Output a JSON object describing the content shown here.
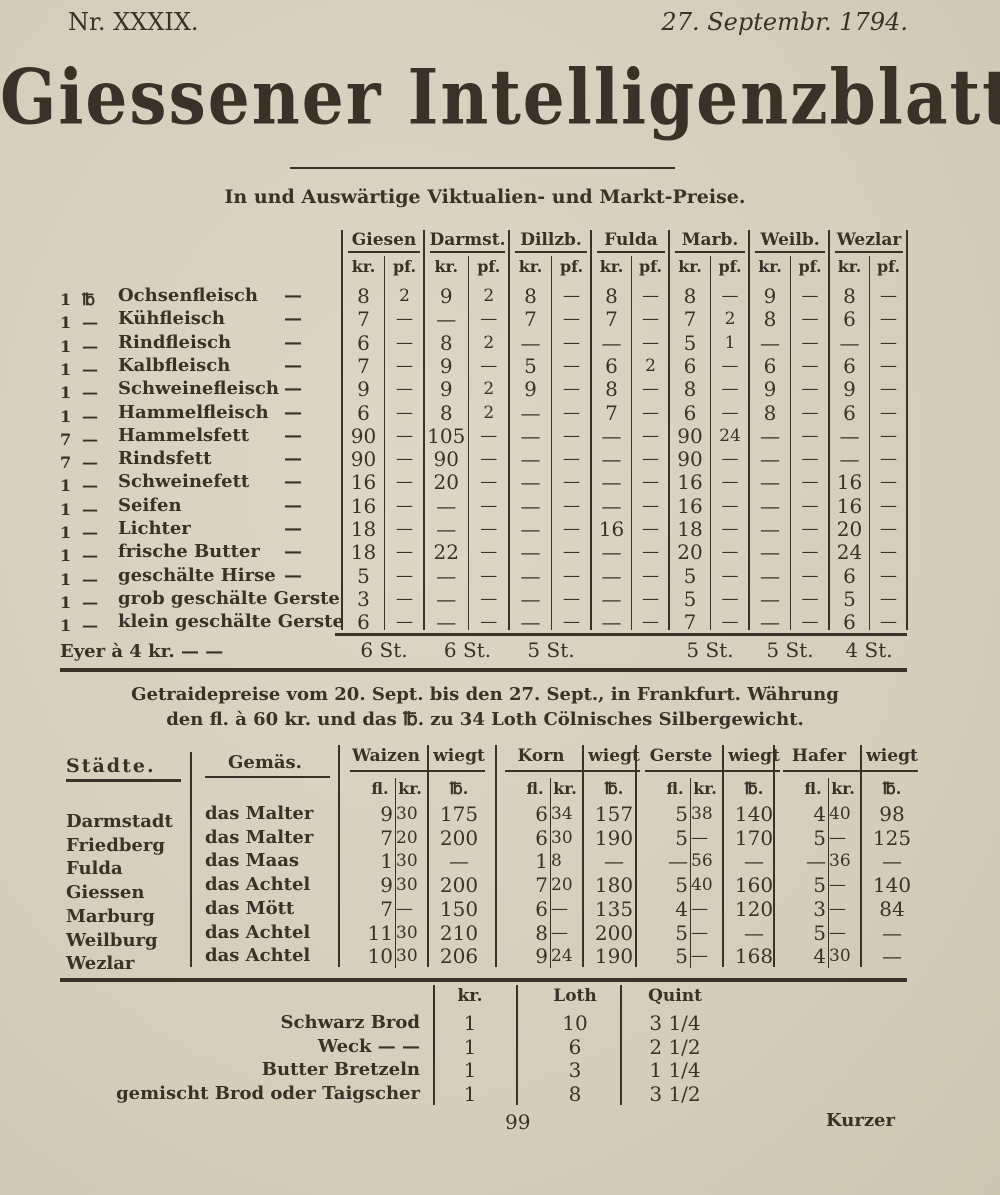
{
  "header": {
    "number": "Nr. XXXIX.",
    "date": "27. Septembr. 1794.",
    "title": "Giessener Intelligenzblatt."
  },
  "market": {
    "subtitle": "In und Auswärtige Viktualien- und Markt-Preise.",
    "cities": [
      "Giesen",
      "Darmst.",
      "Dillzb.",
      "Fulda",
      "Marb.",
      "Weilb.",
      "Wezlar"
    ],
    "units": [
      "kr.",
      "pf."
    ],
    "rows": [
      {
        "qty": "1",
        "unit": "℔",
        "item": "Ochsenfleisch",
        "dash": "—",
        "values": [
          [
            "8",
            "2"
          ],
          [
            "9",
            "2"
          ],
          [
            "8",
            "—"
          ],
          [
            "8",
            "—"
          ],
          [
            "8",
            "—"
          ],
          [
            "9",
            "—"
          ],
          [
            "8",
            "—"
          ]
        ]
      },
      {
        "qty": "1",
        "unit": "—",
        "item": "Kühfleisch",
        "dash": "—",
        "values": [
          [
            "7",
            "—"
          ],
          [
            "—",
            "—"
          ],
          [
            "7",
            "—"
          ],
          [
            "7",
            "—"
          ],
          [
            "7",
            "2"
          ],
          [
            "8",
            "—"
          ],
          [
            "6",
            "—"
          ]
        ]
      },
      {
        "qty": "1",
        "unit": "—",
        "item": "Rindfleisch",
        "dash": "—",
        "values": [
          [
            "6",
            "—"
          ],
          [
            "8",
            "2"
          ],
          [
            "—",
            "—"
          ],
          [
            "—",
            "—"
          ],
          [
            "5",
            "1"
          ],
          [
            "—",
            "—"
          ],
          [
            "—",
            "—"
          ]
        ]
      },
      {
        "qty": "1",
        "unit": "—",
        "item": "Kalbfleisch",
        "dash": "—",
        "values": [
          [
            "7",
            "—"
          ],
          [
            "9",
            "—"
          ],
          [
            "5",
            "—"
          ],
          [
            "6",
            "2"
          ],
          [
            "6",
            "—"
          ],
          [
            "6",
            "—"
          ],
          [
            "6",
            "—"
          ]
        ]
      },
      {
        "qty": "1",
        "unit": "—",
        "item": "Schweinefleisch",
        "dash": "—",
        "values": [
          [
            "9",
            "—"
          ],
          [
            "9",
            "2"
          ],
          [
            "9",
            "—"
          ],
          [
            "8",
            "—"
          ],
          [
            "8",
            "—"
          ],
          [
            "9",
            "—"
          ],
          [
            "9",
            "—"
          ]
        ]
      },
      {
        "qty": "1",
        "unit": "—",
        "item": "Hammelfleisch",
        "dash": "—",
        "values": [
          [
            "6",
            "—"
          ],
          [
            "8",
            "2"
          ],
          [
            "—",
            "—"
          ],
          [
            "7",
            "—"
          ],
          [
            "6",
            "—"
          ],
          [
            "8",
            "—"
          ],
          [
            "6",
            "—"
          ]
        ]
      },
      {
        "qty": "7",
        "unit": "—",
        "item": "Hammelsfett",
        "dash": "—",
        "values": [
          [
            "90",
            "—"
          ],
          [
            "105",
            "—"
          ],
          [
            "—",
            "—"
          ],
          [
            "—",
            "—"
          ],
          [
            "90",
            "24"
          ],
          [
            "—",
            "—"
          ],
          [
            "—",
            "—"
          ]
        ]
      },
      {
        "qty": "7",
        "unit": "—",
        "item": "Rindsfett",
        "dash": "—",
        "values": [
          [
            "90",
            "—"
          ],
          [
            "90",
            "—"
          ],
          [
            "—",
            "—"
          ],
          [
            "—",
            "—"
          ],
          [
            "90",
            "—"
          ],
          [
            "—",
            "—"
          ],
          [
            "—",
            "—"
          ]
        ]
      },
      {
        "qty": "1",
        "unit": "—",
        "item": "Schweinefett",
        "dash": "—",
        "values": [
          [
            "16",
            "—"
          ],
          [
            "20",
            "—"
          ],
          [
            "—",
            "—"
          ],
          [
            "—",
            "—"
          ],
          [
            "16",
            "—"
          ],
          [
            "—",
            "—"
          ],
          [
            "16",
            "—"
          ]
        ]
      },
      {
        "qty": "1",
        "unit": "—",
        "item": "Seifen",
        "dash": "—",
        "values": [
          [
            "16",
            "—"
          ],
          [
            "—",
            "—"
          ],
          [
            "—",
            "—"
          ],
          [
            "—",
            "—"
          ],
          [
            "16",
            "—"
          ],
          [
            "—",
            "—"
          ],
          [
            "16",
            "—"
          ]
        ]
      },
      {
        "qty": "1",
        "unit": "—",
        "item": "Lichter",
        "dash": "—",
        "values": [
          [
            "18",
            "—"
          ],
          [
            "—",
            "—"
          ],
          [
            "—",
            "—"
          ],
          [
            "16",
            "—"
          ],
          [
            "18",
            "—"
          ],
          [
            "—",
            "—"
          ],
          [
            "20",
            "—"
          ]
        ]
      },
      {
        "qty": "1",
        "unit": "—",
        "item": "frische Butter",
        "dash": "—",
        "values": [
          [
            "18",
            "—"
          ],
          [
            "22",
            "—"
          ],
          [
            "—",
            "—"
          ],
          [
            "—",
            "—"
          ],
          [
            "20",
            "—"
          ],
          [
            "—",
            "—"
          ],
          [
            "24",
            "—"
          ]
        ]
      },
      {
        "qty": "1",
        "unit": "—",
        "item": "geschälte Hirse",
        "dash": "—",
        "values": [
          [
            "5",
            "—"
          ],
          [
            "—",
            "—"
          ],
          [
            "—",
            "—"
          ],
          [
            "—",
            "—"
          ],
          [
            "5",
            "—"
          ],
          [
            "—",
            "—"
          ],
          [
            "6",
            "—"
          ]
        ]
      },
      {
        "qty": "1",
        "unit": "—",
        "item": "grob geschälte Gerste",
        "dash": "",
        "values": [
          [
            "3",
            "—"
          ],
          [
            "—",
            "—"
          ],
          [
            "—",
            "—"
          ],
          [
            "—",
            "—"
          ],
          [
            "5",
            "—"
          ],
          [
            "—",
            "—"
          ],
          [
            "5",
            "—"
          ]
        ]
      },
      {
        "qty": "1",
        "unit": "—",
        "item": "klein geschälte Gerste",
        "dash": "",
        "values": [
          [
            "6",
            "—"
          ],
          [
            "—",
            "—"
          ],
          [
            "—",
            "—"
          ],
          [
            "—",
            "—"
          ],
          [
            "7",
            "—"
          ],
          [
            "—",
            "—"
          ],
          [
            "6",
            "—"
          ]
        ]
      }
    ],
    "eggs": {
      "label": "Eyer à 4 kr.  —  —",
      "values": [
        "6 St.",
        "6 St.",
        "5 St.",
        "",
        "5 St.",
        "5 St.",
        "4 St."
      ]
    }
  },
  "grain": {
    "intro_line1": "Getraidepreise vom 20. Sept. bis den 27. Sept., in Frankfurt. Währung",
    "intro_line2": "den fl. à 60 kr. und das ℔. zu 34 Loth Cölnisches Silbergewicht.",
    "col_city": "Städte.",
    "col_measure": "Gemäs.",
    "grains": [
      "Waizen",
      "Korn",
      "Gerste",
      "Hafer"
    ],
    "weighs": "wiegt",
    "units": [
      "fl.",
      "kr.",
      "℔."
    ],
    "rows": [
      {
        "city": "Darmstadt",
        "measure": "das Malter",
        "values": [
          [
            "9",
            "30",
            "175"
          ],
          [
            "6",
            "34",
            "157"
          ],
          [
            "5",
            "38",
            "140"
          ],
          [
            "4",
            "40",
            "98"
          ]
        ]
      },
      {
        "city": "Friedberg",
        "measure": "das Malter",
        "values": [
          [
            "7",
            "20",
            "200"
          ],
          [
            "6",
            "30",
            "190"
          ],
          [
            "5",
            "—",
            "170"
          ],
          [
            "5",
            "—",
            "125"
          ]
        ]
      },
      {
        "city": "Fulda",
        "measure": "das Maas",
        "values": [
          [
            "1",
            "30",
            "—"
          ],
          [
            "1",
            "8",
            "—"
          ],
          [
            "—",
            "56",
            "—"
          ],
          [
            "—",
            "36",
            "—"
          ]
        ]
      },
      {
        "city": "Giessen",
        "measure": "das Achtel",
        "values": [
          [
            "9",
            "30",
            "200"
          ],
          [
            "7",
            "20",
            "180"
          ],
          [
            "5",
            "40",
            "160"
          ],
          [
            "5",
            "—",
            "140"
          ]
        ]
      },
      {
        "city": "Marburg",
        "measure": "das Mött",
        "values": [
          [
            "7",
            "—",
            "150"
          ],
          [
            "6",
            "—",
            "135"
          ],
          [
            "4",
            "—",
            "120"
          ],
          [
            "3",
            "—",
            "84"
          ]
        ]
      },
      {
        "city": "Weilburg",
        "measure": "das Achtel",
        "values": [
          [
            "11",
            "30",
            "210"
          ],
          [
            "8",
            "—",
            "200"
          ],
          [
            "5",
            "—",
            "—"
          ],
          [
            "5",
            "—",
            "—"
          ]
        ]
      },
      {
        "city": "Wezlar",
        "measure": "das Achtel",
        "values": [
          [
            "10",
            "30",
            "206"
          ],
          [
            "9",
            "24",
            "190"
          ],
          [
            "5",
            "—",
            "168"
          ],
          [
            "4",
            "30",
            "—"
          ]
        ]
      }
    ]
  },
  "bread": {
    "headers": [
      "kr.",
      "Loth",
      "Quint"
    ],
    "rows": [
      {
        "item": "Schwarz Brod",
        "values": [
          "1",
          "10",
          "3 1/4"
        ]
      },
      {
        "item": "Weck  —  —",
        "values": [
          "1",
          "6",
          "2 1/2"
        ]
      },
      {
        "item": "Butter Bretzeln",
        "values": [
          "1",
          "3",
          "1 1/4"
        ]
      },
      {
        "item": "gemischt Brod oder Taigscher",
        "values": [
          "1",
          "8",
          "3 1/2"
        ]
      }
    ]
  },
  "footer": {
    "page": "99",
    "catchword": "Kurzer"
  },
  "colors": {
    "paper": "#d8cfbf",
    "ink": "#3a3128"
  }
}
